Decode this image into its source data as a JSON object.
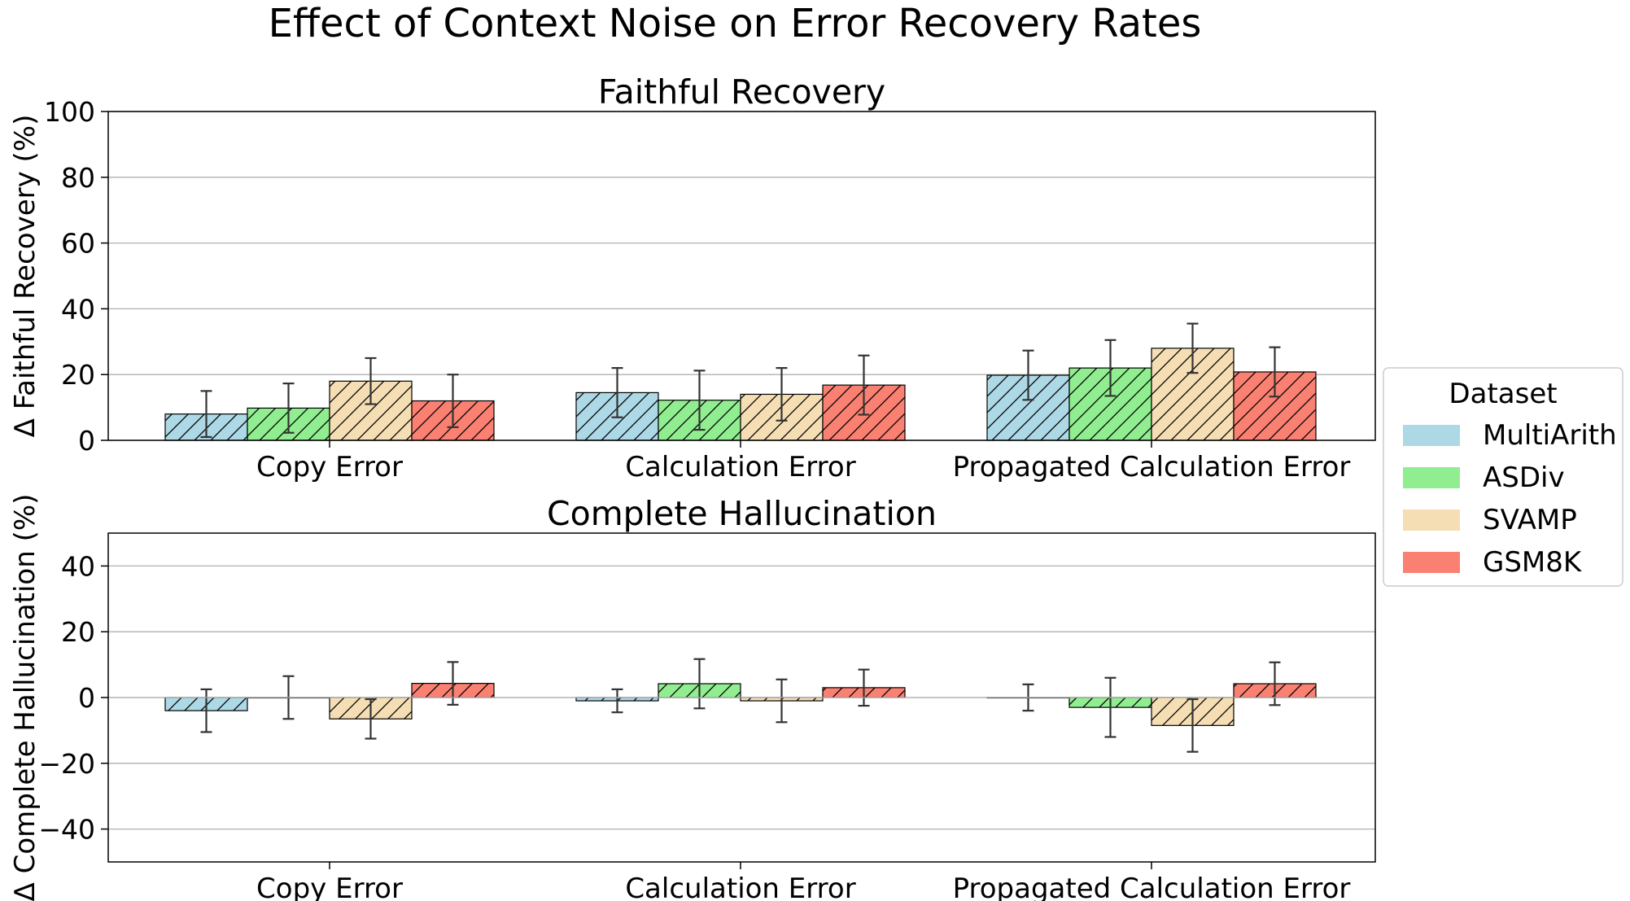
{
  "figure_title": "Effect of Context Noise on Error Recovery Rates",
  "legend": {
    "title": "Dataset",
    "entries": [
      "MultiArith",
      "ASDiv",
      "SVAMP",
      "GSM8K"
    ]
  },
  "colors": {
    "MultiArith": "#add8e6",
    "ASDiv": "#90ee90",
    "SVAMP": "#f5deb3",
    "GSM8K": "#fa8072",
    "edge": "#000000",
    "grid": "#b0b0b0",
    "errorbar": "#333333"
  },
  "chart_data": [
    {
      "type": "bar",
      "title": "Faithful Recovery",
      "xlabel": "",
      "ylabel": "Δ Faithful Recovery (%)",
      "ylim": [
        0,
        100
      ],
      "yticks": [
        0,
        20,
        40,
        60,
        80,
        100
      ],
      "ytick_labels": [
        "0",
        "20",
        "40",
        "60",
        "80",
        "100"
      ],
      "grid": "y",
      "categories": [
        "Copy Error",
        "Calculation Error",
        "Propagated Calculation Error"
      ],
      "series": [
        {
          "name": "MultiArith",
          "values": [
            8,
            14.5,
            19.8
          ],
          "errors": [
            7,
            7.5,
            7.5
          ]
        },
        {
          "name": "ASDiv",
          "values": [
            9.8,
            12.2,
            22
          ],
          "errors": [
            7.5,
            9,
            8.5
          ]
        },
        {
          "name": "SVAMP",
          "values": [
            18,
            14,
            28
          ],
          "errors": [
            7,
            8,
            7.5
          ]
        },
        {
          "name": "GSM8K",
          "values": [
            12,
            16.8,
            20.8
          ],
          "errors": [
            8,
            9,
            7.5
          ]
        }
      ]
    },
    {
      "type": "bar",
      "title": "Complete Hallucination",
      "xlabel": "",
      "ylabel": "Δ Complete Hallucination (%)",
      "ylim": [
        -50,
        50
      ],
      "yticks": [
        -40,
        -20,
        0,
        20,
        40
      ],
      "ytick_labels": [
        "−40",
        "−20",
        "0",
        "20",
        "40"
      ],
      "grid": "y",
      "categories": [
        "Copy Error",
        "Calculation Error",
        "Propagated Calculation Error"
      ],
      "series": [
        {
          "name": "MultiArith",
          "values": [
            -4,
            -1,
            0
          ],
          "errors": [
            6.5,
            3.5,
            4
          ]
        },
        {
          "name": "ASDiv",
          "values": [
            0,
            4.2,
            -3
          ],
          "errors": [
            6.5,
            7.5,
            9
          ]
        },
        {
          "name": "SVAMP",
          "values": [
            -6.5,
            -1,
            -8.5
          ],
          "errors": [
            6,
            6.5,
            8
          ]
        },
        {
          "name": "GSM8K",
          "values": [
            4.3,
            3,
            4.2
          ],
          "errors": [
            6.5,
            5.5,
            6.5
          ]
        }
      ]
    }
  ]
}
